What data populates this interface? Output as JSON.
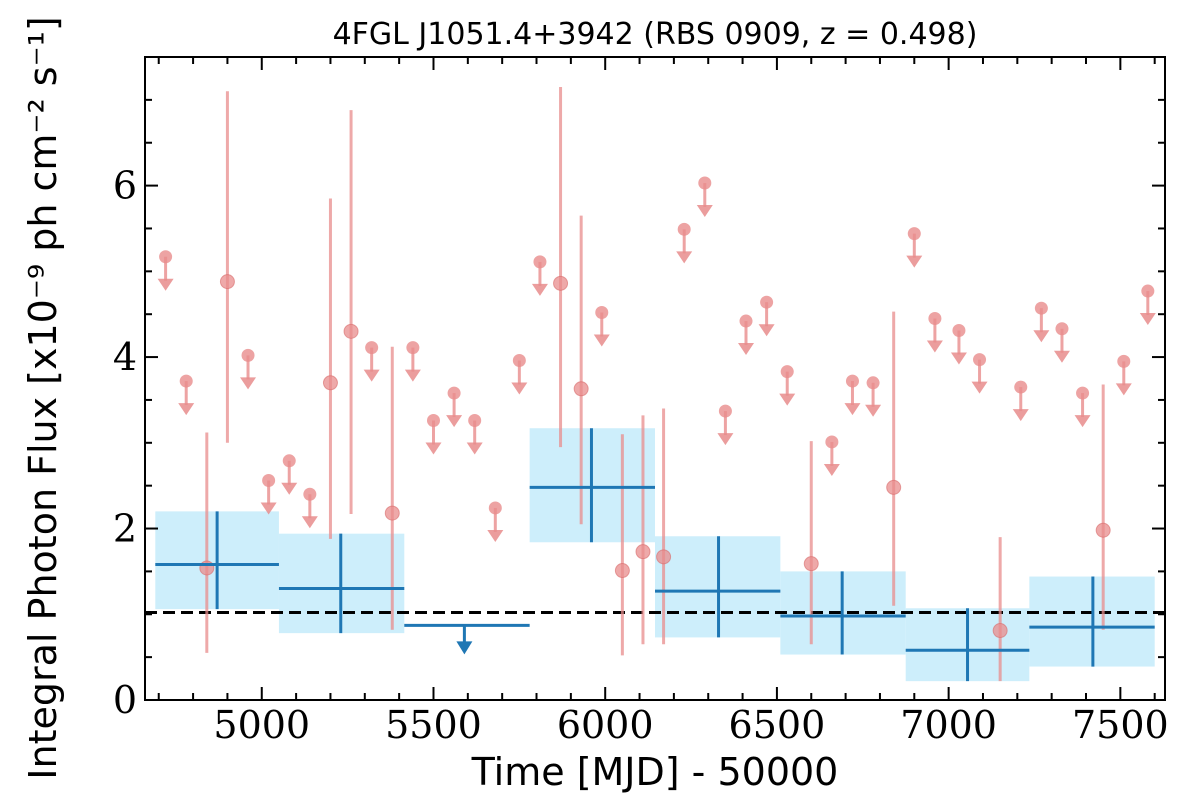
{
  "chart_data": {
    "type": "scatter",
    "title": "4FGL J1051.4+3942 (RBS 0909, z = 0.498)",
    "xlabel": "Time [MJD] - 50000",
    "ylabel": "Integral Photon Flux [x10⁻⁹ ph cm⁻² s⁻¹]",
    "xlim": [
      4660,
      7630
    ],
    "ylim": [
      0,
      7.5
    ],
    "x_ticks": [
      5000,
      5500,
      6000,
      6500,
      7000,
      7500
    ],
    "x_tick_labels": [
      "5000",
      "5500",
      "6000",
      "6500",
      "7000",
      "7500"
    ],
    "y_ticks": [
      0,
      2,
      4,
      6
    ],
    "y_tick_labels": [
      "0",
      "2",
      "4",
      "6"
    ],
    "grid": false,
    "reference_line": {
      "y": 1.02,
      "style": "dashed",
      "color": "#000000"
    },
    "colors": {
      "short_bins": "#e88c8c",
      "long_bins": "#1f77b4",
      "long_bins_band": "#cdeefb"
    },
    "series": [
      {
        "bin": "short",
        "detections": [
          {
            "x": 4840,
            "y": 1.54,
            "ylo": 0.55,
            "yhi": 3.12
          },
          {
            "x": 4900,
            "y": 4.88,
            "ylo": 3.0,
            "yhi": 7.1
          },
          {
            "x": 5200,
            "y": 3.7,
            "ylo": 1.88,
            "yhi": 5.85
          },
          {
            "x": 5260,
            "y": 4.3,
            "ylo": 2.17,
            "yhi": 6.88
          },
          {
            "x": 5380,
            "y": 2.18,
            "ylo": 0.82,
            "yhi": 4.12
          },
          {
            "x": 5870,
            "y": 4.86,
            "ylo": 2.95,
            "yhi": 7.15
          },
          {
            "x": 5930,
            "y": 3.63,
            "ylo": 2.05,
            "yhi": 5.65
          },
          {
            "x": 6050,
            "y": 1.51,
            "ylo": 0.52,
            "yhi": 3.1
          },
          {
            "x": 6110,
            "y": 1.73,
            "ylo": 0.65,
            "yhi": 3.32
          },
          {
            "x": 6170,
            "y": 1.67,
            "ylo": 0.65,
            "yhi": 3.4
          },
          {
            "x": 6600,
            "y": 1.59,
            "ylo": 0.65,
            "yhi": 3.02
          },
          {
            "x": 6840,
            "y": 2.48,
            "ylo": 1.1,
            "yhi": 4.53
          },
          {
            "x": 7150,
            "y": 0.81,
            "ylo": 0.22,
            "yhi": 1.9
          },
          {
            "x": 7450,
            "y": 1.98,
            "ylo": 0.82,
            "yhi": 3.68
          }
        ],
        "upper_limits": [
          {
            "x": 4720,
            "y": 5.17
          },
          {
            "x": 4780,
            "y": 3.72
          },
          {
            "x": 4960,
            "y": 4.02
          },
          {
            "x": 5020,
            "y": 2.56
          },
          {
            "x": 5080,
            "y": 2.79
          },
          {
            "x": 5140,
            "y": 2.4
          },
          {
            "x": 5320,
            "y": 4.11
          },
          {
            "x": 5440,
            "y": 4.11
          },
          {
            "x": 5500,
            "y": 3.26
          },
          {
            "x": 5560,
            "y": 3.58
          },
          {
            "x": 5620,
            "y": 3.26
          },
          {
            "x": 5680,
            "y": 2.24
          },
          {
            "x": 5750,
            "y": 3.96
          },
          {
            "x": 5810,
            "y": 5.11
          },
          {
            "x": 5990,
            "y": 4.52
          },
          {
            "x": 6230,
            "y": 5.49
          },
          {
            "x": 6290,
            "y": 6.03
          },
          {
            "x": 6350,
            "y": 3.37
          },
          {
            "x": 6410,
            "y": 4.42
          },
          {
            "x": 6470,
            "y": 4.64
          },
          {
            "x": 6530,
            "y": 3.83
          },
          {
            "x": 6660,
            "y": 3.01
          },
          {
            "x": 6720,
            "y": 3.72
          },
          {
            "x": 6780,
            "y": 3.7
          },
          {
            "x": 6900,
            "y": 5.44
          },
          {
            "x": 6960,
            "y": 4.45
          },
          {
            "x": 7030,
            "y": 4.31
          },
          {
            "x": 7090,
            "y": 3.97
          },
          {
            "x": 7210,
            "y": 3.65
          },
          {
            "x": 7270,
            "y": 4.57
          },
          {
            "x": 7330,
            "y": 4.33
          },
          {
            "x": 7390,
            "y": 3.58
          },
          {
            "x": 7510,
            "y": 3.95
          },
          {
            "x": 7580,
            "y": 4.77
          }
        ]
      },
      {
        "bin": "long",
        "detections": [
          {
            "xlo": 4690,
            "xhi": 5050,
            "x": 4870,
            "y": 1.58,
            "ylo": 1.06,
            "yhi": 2.2,
            "band_lo": 1.06,
            "band_hi": 2.2
          },
          {
            "xlo": 5050,
            "xhi": 5415,
            "x": 5230,
            "y": 1.3,
            "ylo": 0.78,
            "yhi": 1.94,
            "band_lo": 0.78,
            "band_hi": 1.94
          },
          {
            "xlo": 5780,
            "xhi": 6145,
            "x": 5960,
            "y": 2.48,
            "ylo": 1.84,
            "yhi": 3.17,
            "band_lo": 1.84,
            "band_hi": 3.17
          },
          {
            "xlo": 6145,
            "xhi": 6510,
            "x": 6330,
            "y": 1.27,
            "ylo": 0.73,
            "yhi": 1.91,
            "band_lo": 0.73,
            "band_hi": 1.91
          },
          {
            "xlo": 6510,
            "xhi": 6875,
            "x": 6690,
            "y": 0.98,
            "ylo": 0.53,
            "yhi": 1.5,
            "band_lo": 0.53,
            "band_hi": 1.5
          },
          {
            "xlo": 6875,
            "xhi": 7235,
            "x": 7055,
            "y": 0.58,
            "ylo": 0.22,
            "yhi": 1.07,
            "band_lo": 0.22,
            "band_hi": 1.07
          },
          {
            "xlo": 7235,
            "xhi": 7600,
            "x": 7420,
            "y": 0.85,
            "ylo": 0.39,
            "yhi": 1.44,
            "band_lo": 0.39,
            "band_hi": 1.44
          }
        ],
        "upper_limits": [
          {
            "xlo": 5415,
            "xhi": 5780,
            "x": 5590,
            "y": 0.87
          }
        ]
      }
    ]
  }
}
